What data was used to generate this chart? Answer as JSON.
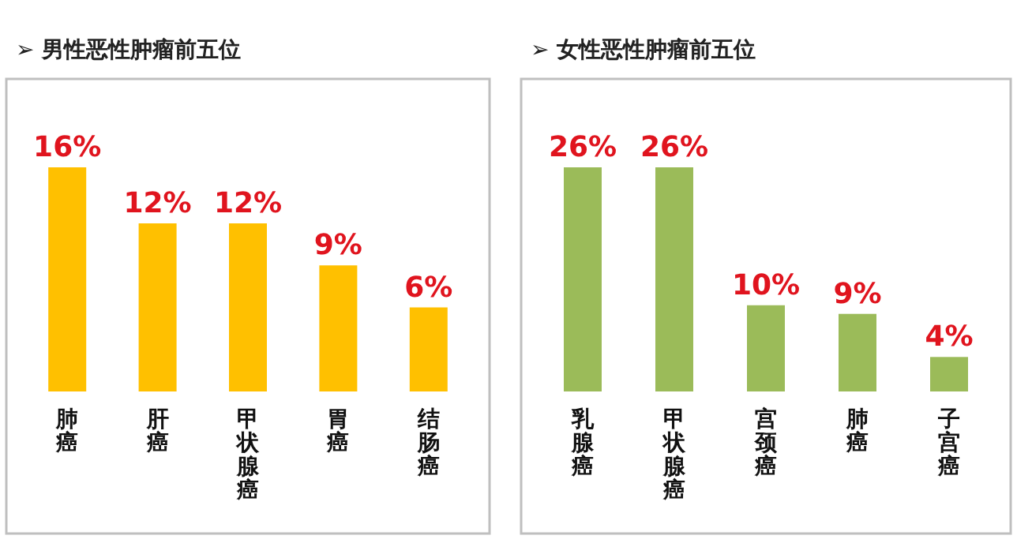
{
  "chart_data": [
    {
      "type": "bar",
      "title": "➢ 男性恶性肿瘤前五位",
      "categories": [
        "肺癌",
        "肝癌",
        "甲状腺癌",
        "胃癌",
        "结肠癌"
      ],
      "values": [
        16,
        12,
        12,
        9,
        6
      ],
      "color": "#ffc000",
      "value_labels": [
        "16%",
        "12%",
        "12%",
        "9%",
        "6%"
      ]
    },
    {
      "type": "bar",
      "title": "➢ 女性恶性肿瘤前五位",
      "categories": [
        "乳腺癌",
        "甲状腺癌",
        "宫颈癌",
        "肺癌",
        "子宫癌"
      ],
      "values": [
        26,
        26,
        10,
        9,
        4
      ],
      "color": "#9bbb59",
      "value_labels": [
        "26%",
        "26%",
        "10%",
        "9%",
        "4%"
      ]
    }
  ]
}
